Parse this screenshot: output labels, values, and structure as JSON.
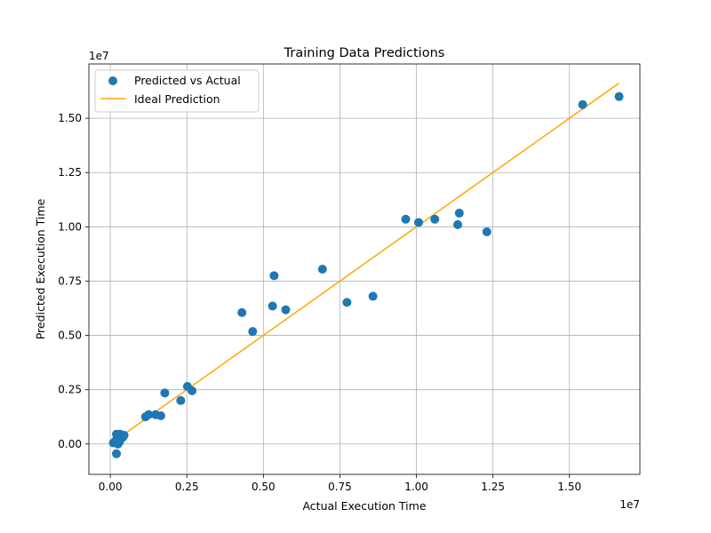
{
  "chart_data": {
    "type": "scatter",
    "title": "Training Data Predictions",
    "xlabel": "Actual Execution Time",
    "ylabel": "Predicted Execution Time",
    "x_multiplier": "1e7",
    "y_multiplier": "1e7",
    "xlim": [
      -0.07,
      1.73
    ],
    "ylim": [
      -0.14,
      1.75
    ],
    "x_ticks": [
      0.0,
      0.25,
      0.5,
      0.75,
      1.0,
      1.25,
      1.5
    ],
    "x_tick_labels": [
      "0.00",
      "0.25",
      "0.50",
      "0.75",
      "1.00",
      "1.25",
      "1.50"
    ],
    "y_ticks": [
      0.0,
      0.25,
      0.5,
      0.75,
      1.0,
      1.25,
      1.5
    ],
    "y_tick_labels": [
      "0.00",
      "0.25",
      "0.50",
      "0.75",
      "1.00",
      "1.25",
      "1.50"
    ],
    "grid": true,
    "legend_position": "top-left",
    "series": [
      {
        "name": "Predicted vs Actual",
        "kind": "scatter",
        "color": "#1f77b4",
        "points": [
          [
            0.01,
            0.005
          ],
          [
            0.015,
            0.01
          ],
          [
            0.02,
            0.02
          ],
          [
            0.025,
            0.0
          ],
          [
            0.03,
            0.01
          ],
          [
            0.04,
            0.03
          ],
          [
            0.045,
            0.04
          ],
          [
            0.03,
            0.03
          ],
          [
            0.02,
            -0.045
          ],
          [
            0.02,
            0.045
          ],
          [
            0.032,
            0.045
          ],
          [
            0.115,
            0.125
          ],
          [
            0.125,
            0.135
          ],
          [
            0.148,
            0.135
          ],
          [
            0.165,
            0.13
          ],
          [
            0.178,
            0.235
          ],
          [
            0.23,
            0.2
          ],
          [
            0.252,
            0.265
          ],
          [
            0.267,
            0.245
          ],
          [
            0.43,
            0.605
          ],
          [
            0.465,
            0.518
          ],
          [
            0.53,
            0.635
          ],
          [
            0.535,
            0.775
          ],
          [
            0.573,
            0.618
          ],
          [
            0.693,
            0.805
          ],
          [
            0.773,
            0.652
          ],
          [
            0.858,
            0.68
          ],
          [
            0.965,
            1.035
          ],
          [
            1.007,
            1.02
          ],
          [
            1.06,
            1.035
          ],
          [
            1.135,
            1.01
          ],
          [
            1.14,
            1.063
          ],
          [
            1.23,
            0.977
          ],
          [
            1.543,
            1.563
          ],
          [
            1.662,
            1.6
          ]
        ]
      },
      {
        "name": "Ideal Prediction",
        "kind": "line",
        "color": "#ffa500",
        "points": [
          [
            0.005,
            0.005
          ],
          [
            1.662,
            1.662
          ]
        ]
      }
    ]
  }
}
